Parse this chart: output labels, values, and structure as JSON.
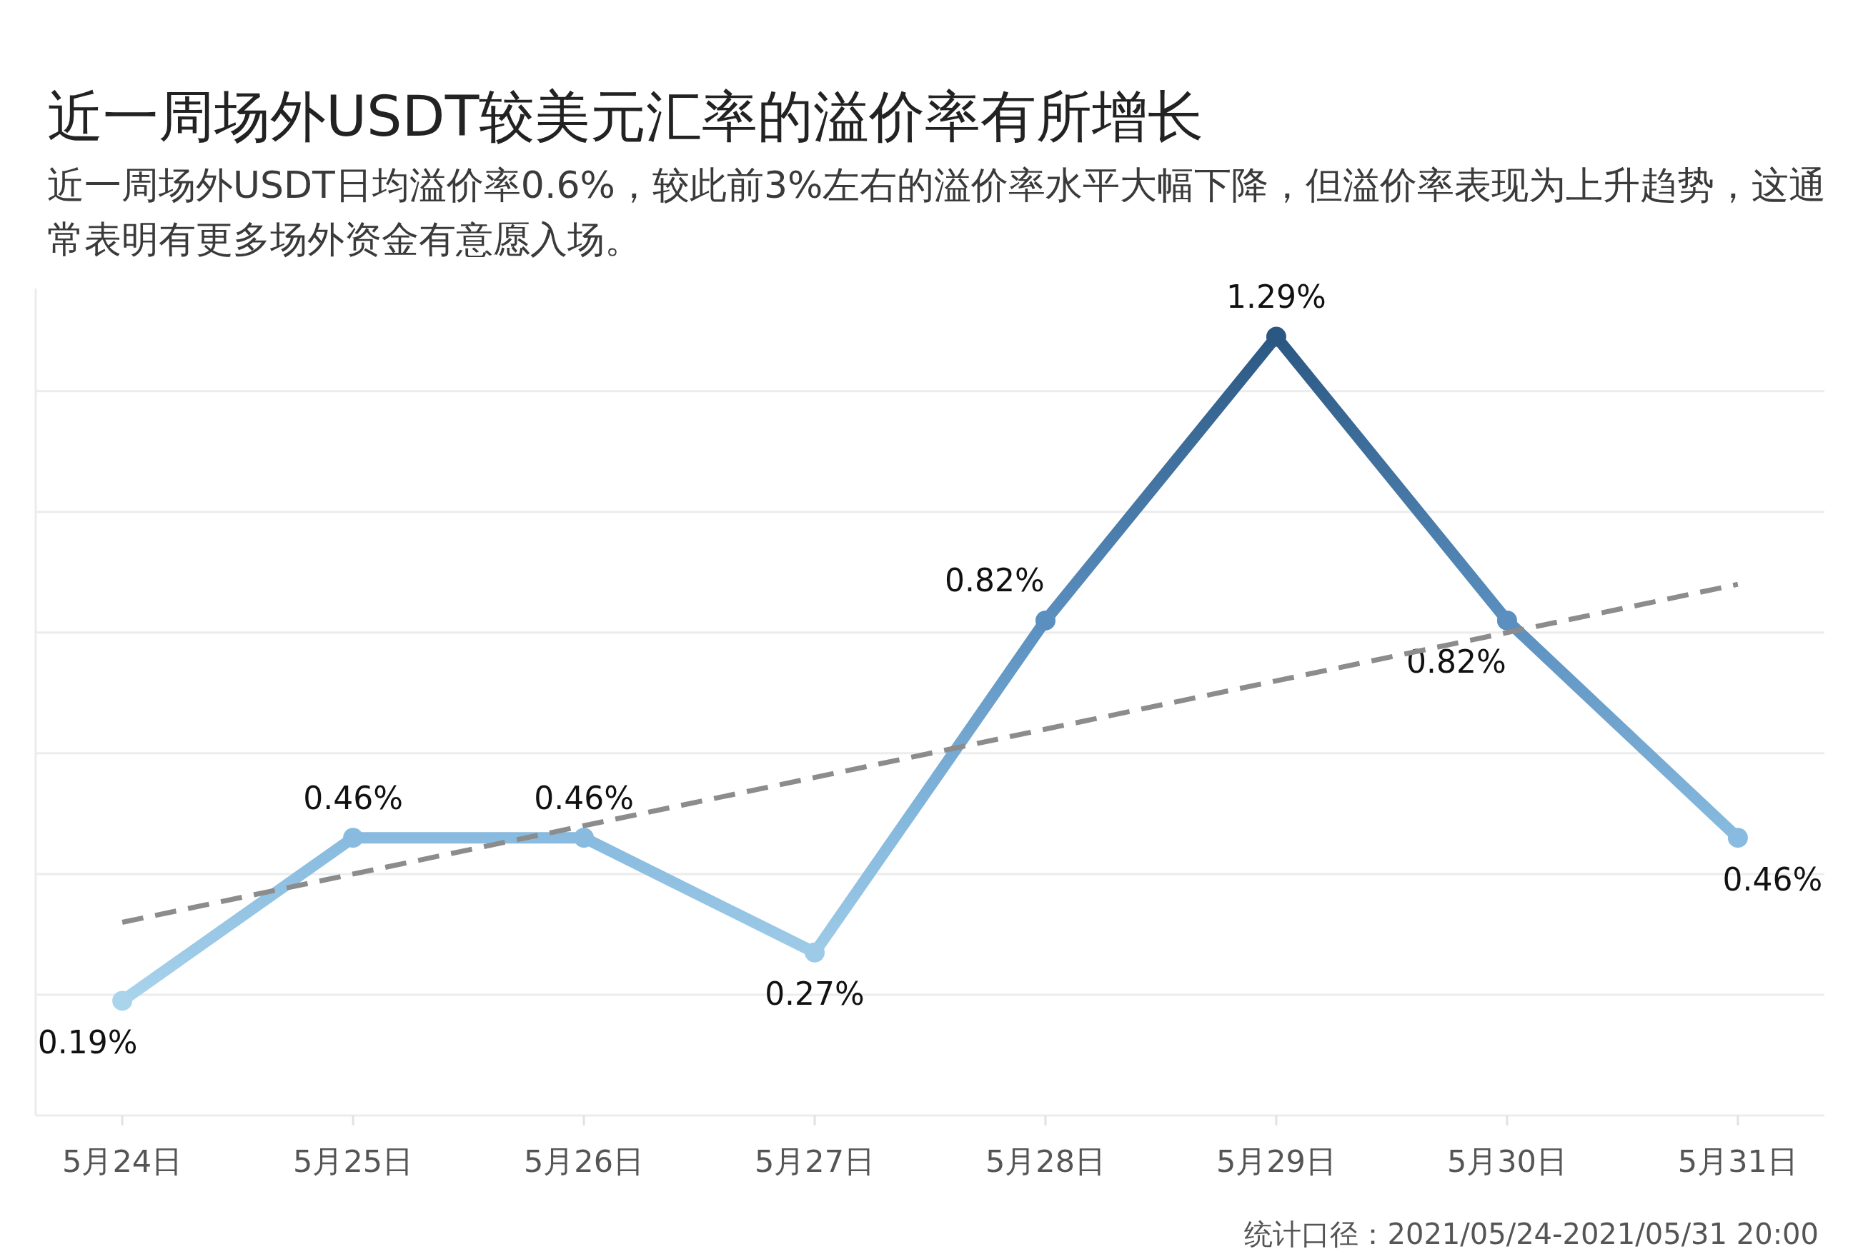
{
  "chart_data": {
    "type": "line",
    "title": "近一周场外USDT较美元汇率的溢价率有所增长",
    "subtitle": "近一周场外USDT日均溢价率0.6%，较此前3%左右的溢价率水平大幅下降，但溢价率表现为上升趋势，这通常表明有更多场外资金有意愿入场。",
    "categories": [
      "5月24日",
      "5月25日",
      "5月26日",
      "5月27日",
      "5月28日",
      "5月29日",
      "5月30日",
      "5月31日"
    ],
    "series": [
      {
        "values": [
          0.19,
          0.46,
          0.46,
          0.27,
          0.82,
          1.29,
          0.82,
          0.46
        ],
        "colors": [
          "#a9d4ec",
          "#88bbdf",
          "#88bbdf",
          "#9dcae7",
          "#5a8fbf",
          "#2b5883",
          "#5a8fbf",
          "#88bbdf"
        ],
        "marker": "circle",
        "value_labels": [
          "0.19%",
          "0.46%",
          "0.46%",
          "0.27%",
          "0.82%",
          "1.29%",
          "0.82%",
          "0.46%"
        ]
      },
      {
        "type": "line",
        "values": [
          0.32,
          0.4,
          0.48,
          0.56,
          0.64,
          0.72,
          0.8,
          0.88
        ],
        "color": "#8c8c8c",
        "line_style": "dashed",
        "marker": "none"
      }
    ],
    "ylim": [
      0,
      1.37
    ],
    "yticks": [
      {
        "value": 0,
        "label": null
      },
      {
        "value": 0.2,
        "label": null
      },
      {
        "value": 0.4,
        "label": null
      },
      {
        "value": 0.6,
        "label": null
      },
      {
        "value": 0.8,
        "label": null
      },
      {
        "value": 1.0,
        "label": null
      },
      {
        "value": 1.2,
        "label": null
      }
    ],
    "grid": "y",
    "tick_labels": "x",
    "annotations": [
      "统计口径：2021/05/24-2021/05/31 20:00"
    ]
  }
}
